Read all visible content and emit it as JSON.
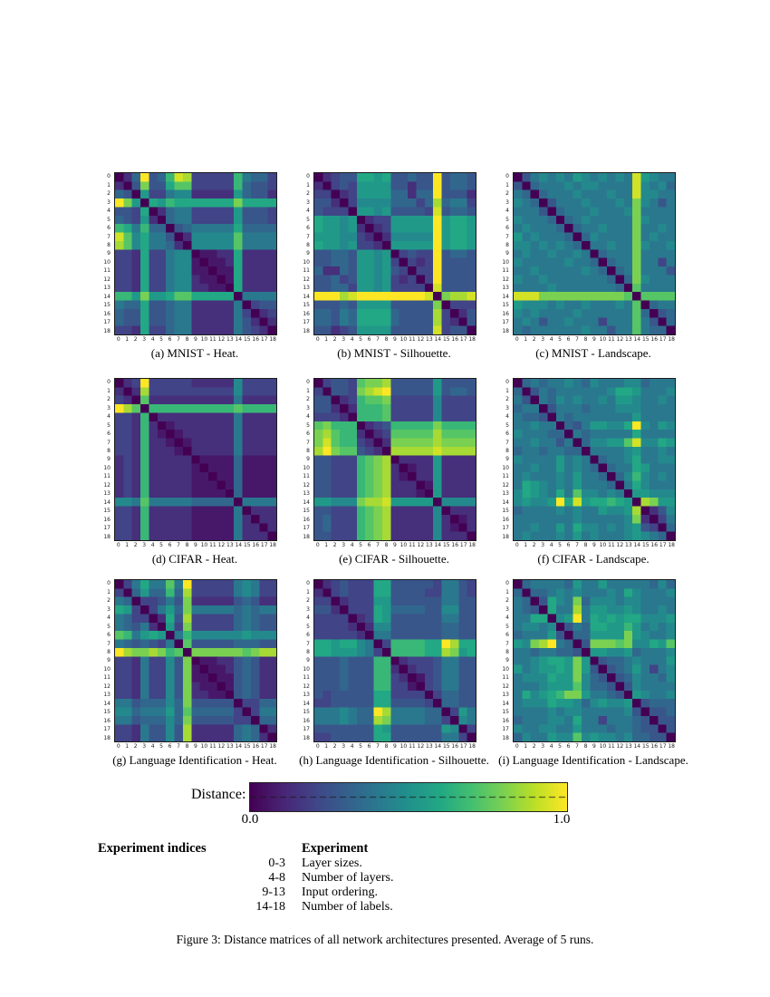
{
  "figure_caption": "Figure 3: Distance matrices of all network architectures presented. Average of 5 runs.",
  "axis_tick_labels": [
    "0",
    "1",
    "2",
    "3",
    "4",
    "5",
    "6",
    "7",
    "8",
    "9",
    "10",
    "11",
    "12",
    "13",
    "14",
    "15",
    "16",
    "17",
    "18"
  ],
  "colorbar": {
    "label": "Distance:",
    "min_label": "0.0",
    "max_label": "1.0"
  },
  "colormap": {
    "name": "viridis",
    "stops": [
      "#440154",
      "#482475",
      "#414487",
      "#355f8d",
      "#2a788e",
      "#21918c",
      "#22a884",
      "#44bf70",
      "#7ad151",
      "#bddf26",
      "#fde725"
    ]
  },
  "legend_table": {
    "indices_header": "Experiment indices",
    "experiment_header": "Experiment",
    "rows": [
      {
        "indices": "0-3",
        "experiment": "Layer sizes."
      },
      {
        "indices": "4-8",
        "experiment": "Number of layers."
      },
      {
        "indices": "9-13",
        "experiment": "Input ordering."
      },
      {
        "indices": "14-18",
        "experiment": "Number of labels."
      }
    ]
  },
  "chart_data_encoding": "Each heatmap is a symmetric 19x19 distance matrix (diagonal = 0). values_hex holds one hex digit per cell; value = digit/15 on the 0.0-1.0 Distance scale. Upper triangle is authoritative; renderer mirrors it.",
  "chart_data": [
    {
      "type": "heatmap",
      "panel": "a",
      "title": "(a) MNIST - Heat.",
      "dataset": "MNIST",
      "method": "Heat",
      "size": 19,
      "value_min": 0.0,
      "value_max": 1.0,
      "values_hex": [
        "025f45aed33333a6553",
        "204c449bb33333a5443",
        "5408336772222285442",
        "fc8098a9999999c9999",
        "4439025663333384443",
        "5438205663333384443",
        "a96a550456666695555",
        "eb796640277777b6666",
        "db796652077777b6666",
        "3329336770112292222",
        "3329336771011292222",
        "3329336771101192222",
        "3329336772110192222",
        "3329336772211092222",
        "aa8c889bb9999906666",
        "6559445662222260344",
        "5449445662222263023",
        "5449445662222264202",
        "3329335662222264320"
      ]
    },
    {
      "type": "heatmap",
      "panel": "b",
      "title": "(b) MNIST - Silhouette.",
      "dataset": "MNIST",
      "method": "Silhouette",
      "size": 19,
      "value_min": 0.0,
      "value_max": 1.0,
      "values_hex": [
        "02344998944544f4554",
        "20343888844244f4554",
        "33023888855255f4442",
        "44203777755535d5663",
        "43330887844443e4554",
        "98878023388888f8998",
        "98878202388888f8998",
        "88877320277777f8998",
        "98878332088888f8998",
        "44554887803433f4554",
        "44554887830323f4444",
        "52254887843033f4444",
        "44554887832303f4444",
        "44534887833330e4444",
        "fffdeffffffffe0cdde",
        "44454888844444c0333",
        "55465999954444d3024",
        "55465999954444d3204",
        "44234888844444e3440"
      ]
    },
    {
      "type": "heatmap",
      "panel": "c",
      "title": "(c) MNIST - Landscape.",
      "dataset": "MNIST",
      "method": "Landscape",
      "size": 19,
      "value_min": 0.0,
      "value_max": 1.0,
      "values_hex": [
        "04676768767676e8766",
        "40566676776666e7675",
        "65056667666766e7766",
        "76504666766676c7646",
        "66640566676667c6666",
        "76665056766666c7666",
        "67666505667666c6676",
        "86766650576666c6766",
        "77676765066766c7667",
        "67667667605666c6666",
        "76666676650566c6636",
        "66766666765056c6664",
        "76676666666505c7666",
        "66667666666650b6666",
        "eeeccccccccccb0bbbb",
        "87776766766676b0566",
        "76766667666666b5045",
        "67646676663666b6405",
        "65666666766466b6550"
      ]
    },
    {
      "type": "heatmap",
      "panel": "d",
      "title": "(d) CIFAR - Heat.",
      "dataset": "CIFAR",
      "method": "Heat",
      "size": 19,
      "value_min": 0.0,
      "value_max": 1.0,
      "values_hex": [
        "023f333332222273333",
        "202d333333333373333",
        "320b222222222262222",
        "fdb0aaaaaaaaaabaaaa",
        "332a022222222262222",
        "332a201222222262222",
        "332a210122222262222",
        "332a221012222262222",
        "332a222102222262222",
        "232a222220111151111",
        "232a222221011151111",
        "232a222221101151111",
        "232a222221110151111",
        "232a222221111051111",
        "776b666665555506666",
        "332a222221111160222",
        "332a222221111162022",
        "332a222221111162202",
        "332a222221111162220"
      ]
    },
    {
      "type": "heatmap",
      "panel": "e",
      "title": "(e) CIFAR - Silhouette.",
      "dataset": "CIFAR",
      "method": "Silhouette",
      "size": 19,
      "value_min": 0.0,
      "value_max": 1.0,
      "values_hex": [
        "03443bccd4444484444",
        "30443cdef4444484554",
        "44023abbc3333373333",
        "44202aaab3333373333",
        "33320aaab3333373333",
        "bcaaa0234aaaaacaaaa",
        "cdbaa2023bbbbbdbbbb",
        "cebaa3202cccccdcccc",
        "dfcbb4320dddddedddd",
        "44333abcd0222282222",
        "44333abcd2012282222",
        "44333abcd2102282222",
        "44333abcd2220182222",
        "44333abcd2221082222",
        "88777cdde8888807777",
        "44333bccd2222270222",
        "45333bccd2222272012",
        "45333bccd2222272102",
        "44333bccd2222272220"
      ]
    },
    {
      "type": "heatmap",
      "panel": "f",
      "title": "(f) CIFAR - Landscape.",
      "dataset": "CIFAR",
      "method": "Landscape",
      "size": 19,
      "value_min": 0.0,
      "value_max": 1.0,
      "values_hex": [
        "0565667657666775666",
        "5046566666679986667",
        "6406576766768876676",
        "5660466656667776666",
        "6554065666666686666",
        "66766054688779f7687",
        "7666550656666696666",
        "6676646057788be7798",
        "5665665506666786676",
        "7666686760566796677",
        "6676686765056698666",
        "67666768665057a7676",
        "6987676866650697666",
        "7987696b77676088777",
        "78778f9e899a980dc88",
        "56666767668778d0247",
        "66666667666667c2036",
        "6676686977676784305",
        "6766676867666787650"
      ]
    },
    {
      "type": "heatmap",
      "panel": "g",
      "title": "(g) Language Identification - Heat.",
      "dataset": "Language Identification",
      "method": "Heat",
      "size": 19,
      "value_min": 0.0,
      "value_max": 1.0,
      "values_hex": [
        "036966b6f3333367633",
        "305855a5d3333367633",
        "65033464c2222245422",
        "98303685c6666656566",
        "65330294d3333356544",
        "65462083c3333356544",
        "ba689806a7777778777",
        "65454360b4444455544",
        "fdccdcab0ccccccbcdd",
        "33263374c0112245422",
        "33263374c1011245422",
        "33263374c1101145422",
        "33263374c2110145422",
        "33263374c2211045422",
        "66455575c4444403355",
        "77566685b5555530366",
        "66455575c4444433055",
        "33264474d2222256502",
        "33264474d2222256520"
      ]
    },
    {
      "type": "heatmap",
      "panel": "h",
      "title": "(h) Language Identification - Silhouette.",
      "dataset": "Language Identification",
      "method": "Silhouette",
      "size": 19,
      "value_min": 0.0,
      "value_max": 1.0,
      "values_hex": [
        "0234333994444436643",
        "2034333994444336643",
        "3302333884444446644",
        "4420333985555447744",
        "3333023984444446644",
        "3333202774444445544",
        "3333320664444445544",
        "998997603aaaa99fd99",
        "998887630aaaa99dc89",
        "4445444aa0233346644",
        "4445444aa2023346644",
        "4445444aa3201346644",
        "4445444aa3310346644",
        "4344444993333035544",
        "3344444994444305544",
        "6667655fd6666550386",
        "6667655dc6666553076",
        "4444444984444448703",
        "3344444994444446630"
      ]
    },
    {
      "type": "heatmap",
      "panel": "i",
      "title": "(i) Language Identification - Landscape.",
      "dataset": "Language Identification",
      "method": "Landscape",
      "size": 19,
      "value_min": 0.0,
      "value_max": 1.0,
      "values_hex": [
        "0566665866866666575",
        "5055676766676976667",
        "6504976c57776776666",
        "6540966d68877876676",
        "6699078f69898997778",
        "6776704659988a86767",
        "5666840558888c87667",
        "87cdf6504cccbc7798b",
        "6656655408877856667",
        "6678998c80455676668",
        "8678898c84045686367",
        "6767988c75404576657",
        "6677888b75540476666",
        "69789acc86654087667",
        "6777988757877804555",
        "6666767766666740445",
        "5666776966366654044",
        "7667766866656654404",
        "5766877b78776755440"
      ]
    }
  ]
}
